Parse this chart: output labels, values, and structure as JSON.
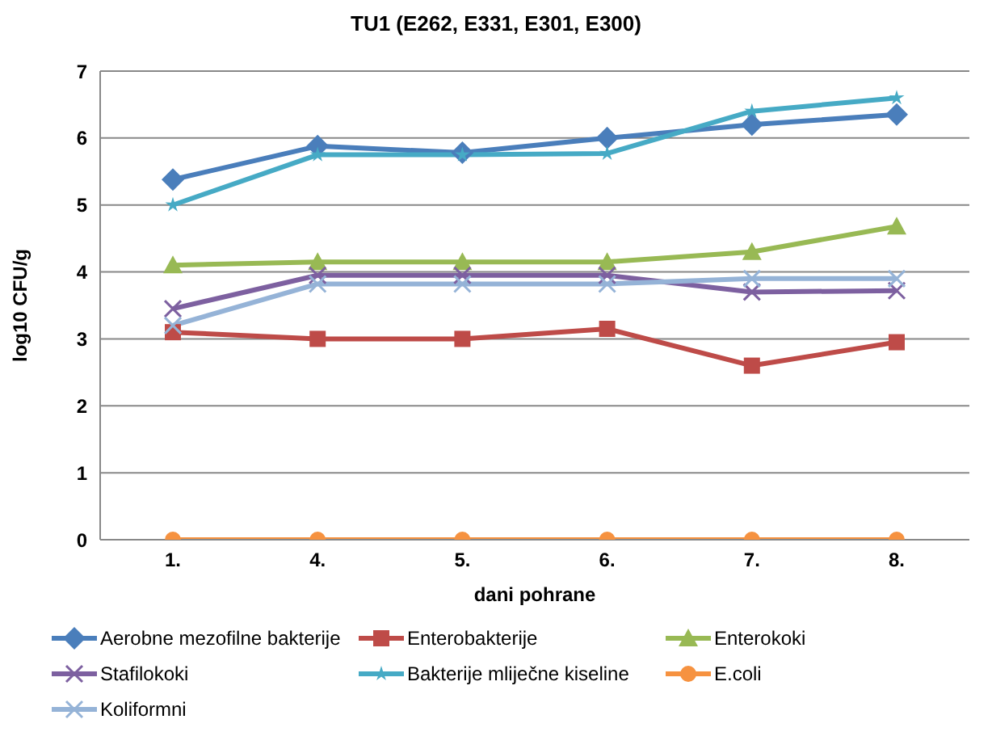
{
  "chart_data": {
    "type": "line",
    "title": "TU1 (E262, E331, E301, E300)",
    "xlabel": "dani pohrane",
    "ylabel": "log10 CFU/g",
    "categories": [
      "1.",
      "4.",
      "5.",
      "6.",
      "7.",
      "8."
    ],
    "ylim": [
      0,
      7
    ],
    "yticks": [
      0,
      1,
      2,
      3,
      4,
      5,
      6,
      7
    ],
    "grid": "y",
    "legend": "bottom",
    "series": [
      {
        "name": "Aerobne mezofilne bakterije",
        "color": "#4a7ebb",
        "marker": "diamond",
        "values": [
          5.38,
          5.88,
          5.78,
          6.0,
          6.2,
          6.35
        ]
      },
      {
        "name": "Enterobakterije",
        "color": "#be4b48",
        "marker": "square",
        "values": [
          3.1,
          3.0,
          3.0,
          3.15,
          2.6,
          2.95
        ]
      },
      {
        "name": "Enterokoki",
        "color": "#98b954",
        "marker": "triangle",
        "values": [
          4.1,
          4.15,
          4.15,
          4.15,
          4.3,
          4.68
        ]
      },
      {
        "name": "Stafilokoki",
        "color": "#7d60a0",
        "marker": "cross",
        "values": [
          3.45,
          3.95,
          3.95,
          3.95,
          3.7,
          3.72
        ]
      },
      {
        "name": "Bakterije mliječne kiseline",
        "color": "#46aac5",
        "marker": "star",
        "values": [
          5.0,
          5.75,
          5.75,
          5.77,
          6.4,
          6.6
        ]
      },
      {
        "name": "E.coli",
        "color": "#f69240",
        "marker": "circle",
        "values": [
          0,
          0,
          0,
          0,
          0,
          0
        ]
      },
      {
        "name": "Koliformni",
        "color": "#95b3d7",
        "marker": "cross",
        "values": [
          3.2,
          3.82,
          3.82,
          3.82,
          3.9,
          3.9
        ]
      }
    ]
  }
}
